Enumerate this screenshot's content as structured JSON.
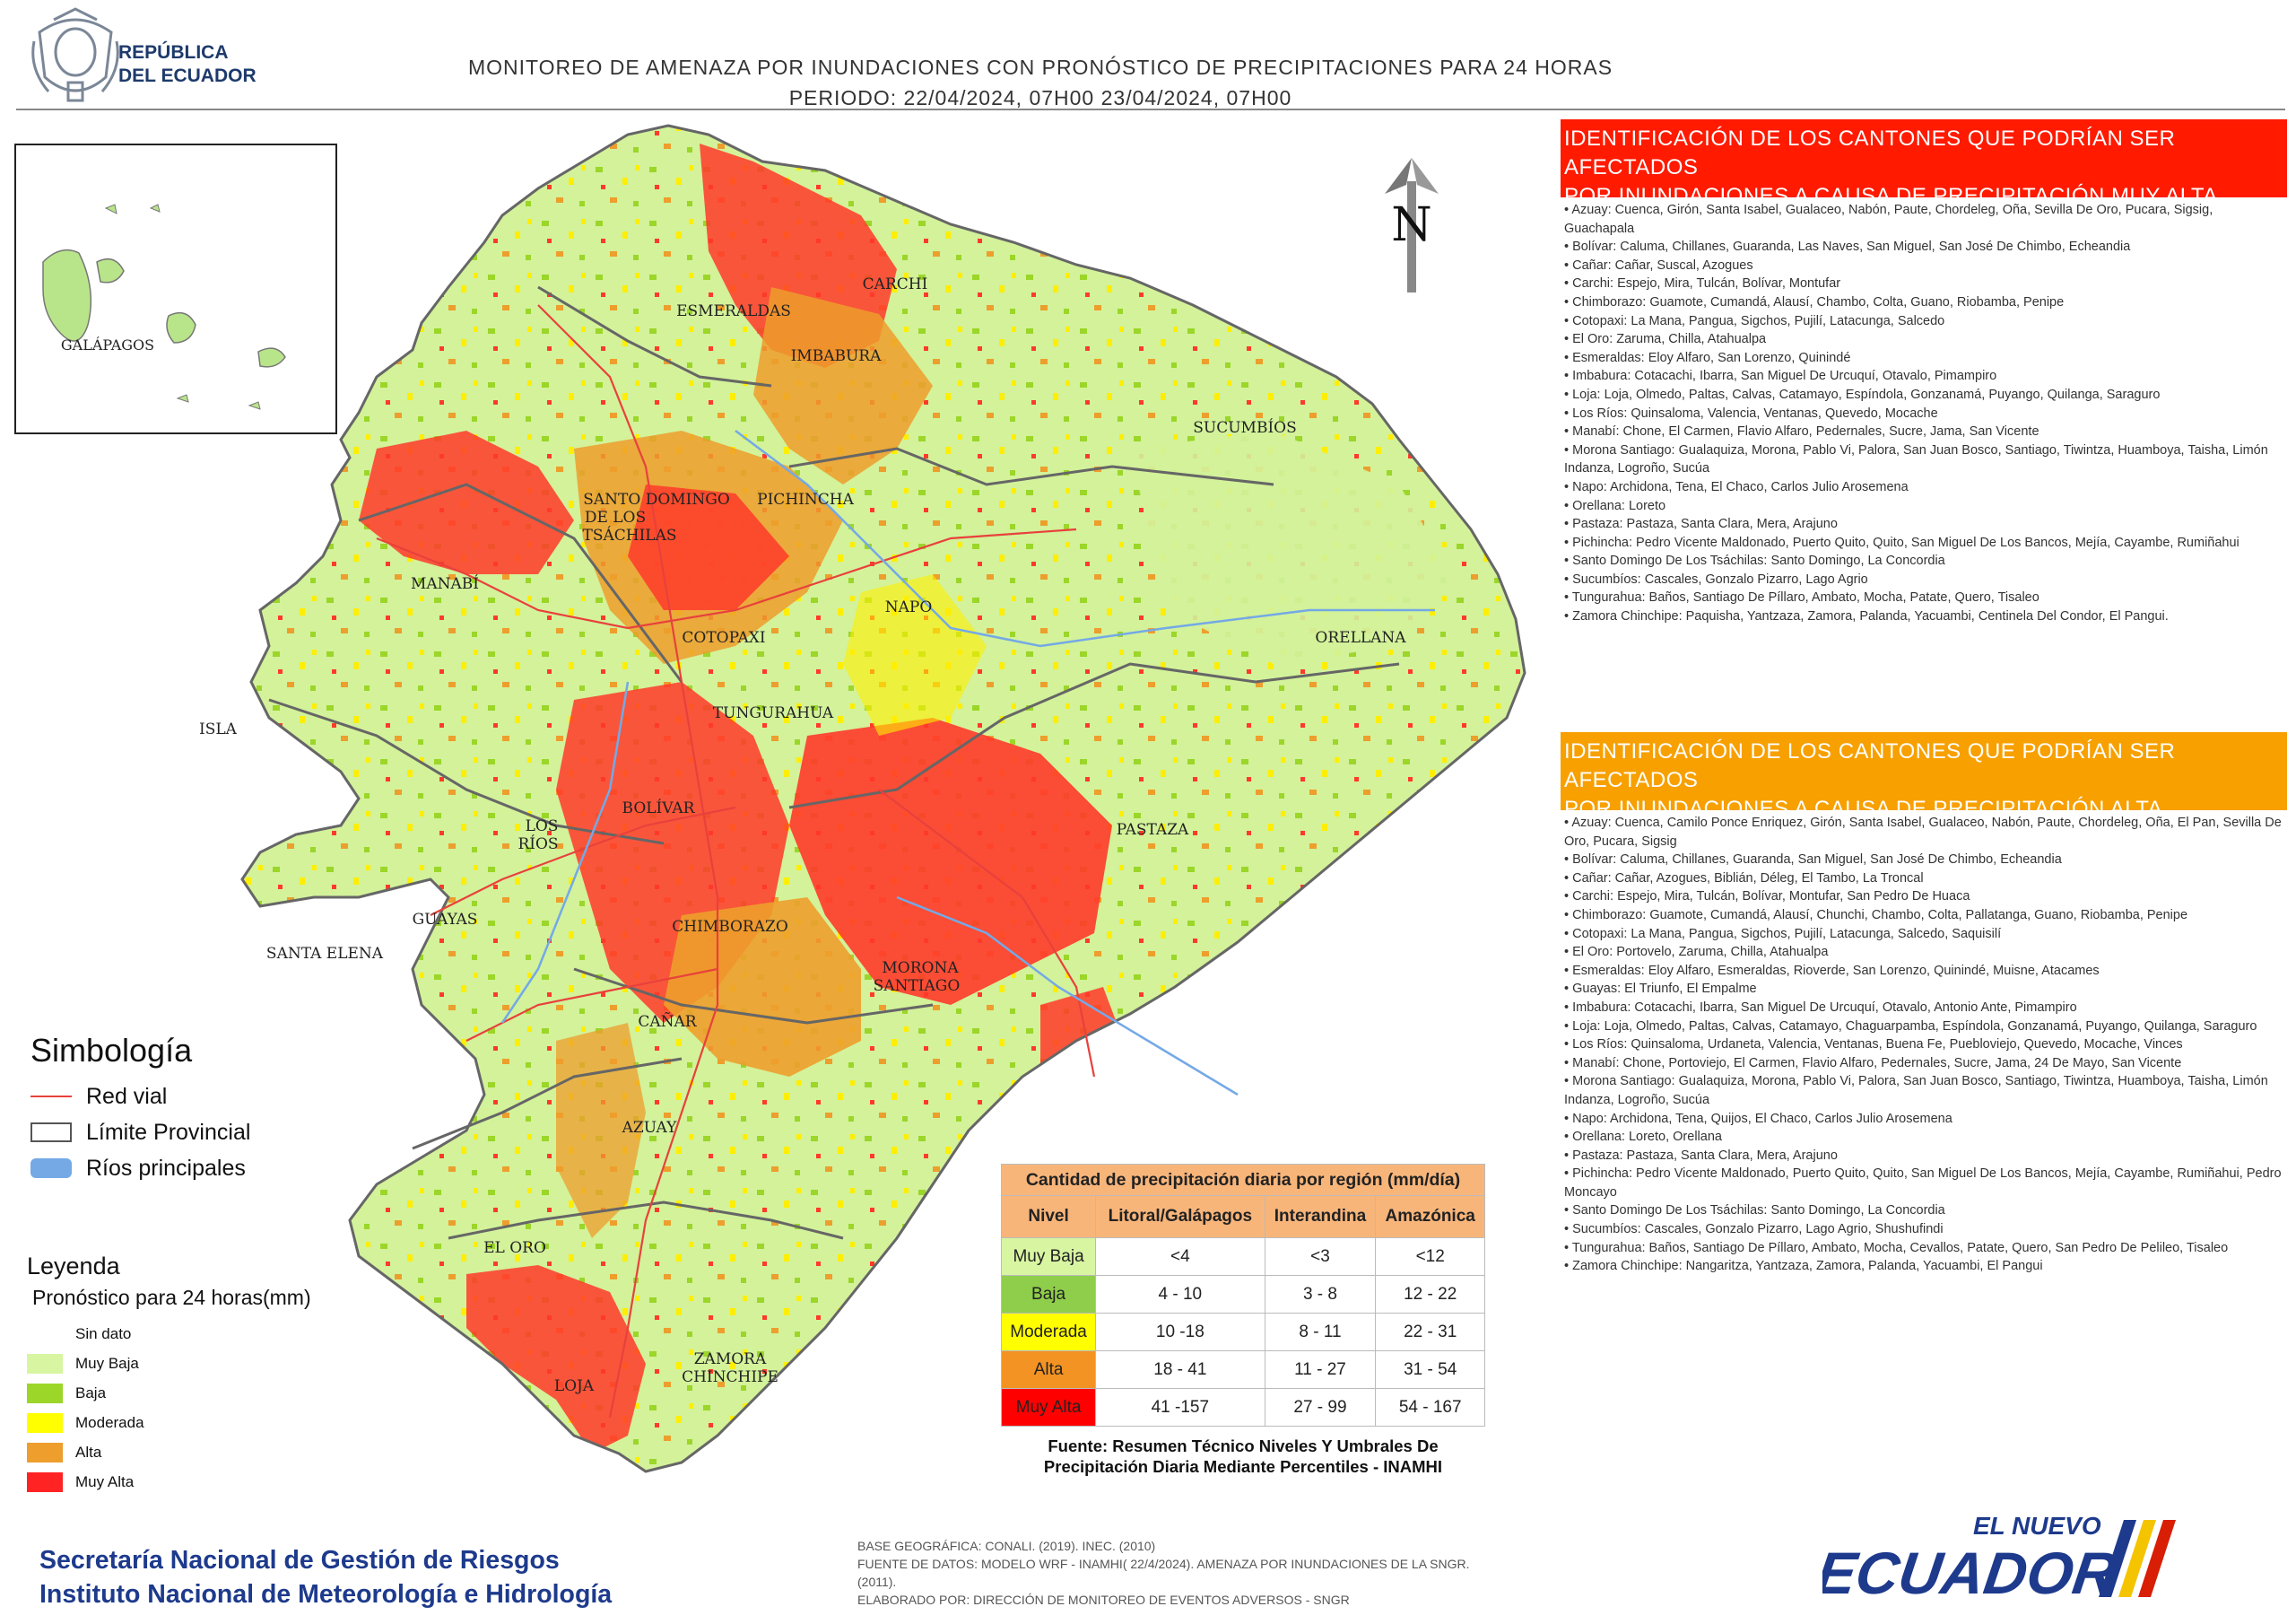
{
  "header": {
    "title_line1": "MONITOREO DE AMENAZA POR INUNDACIONES  CON PRONÓSTICO DE  PRECIPITACIONES PARA 24 HORAS",
    "title_line2": "PERIODO: 22/04/2024, 07H00 23/04/2024, 07H00",
    "republic_line1": "REPÚBLICA",
    "republic_line2": "DEL ECUADOR"
  },
  "map": {
    "north_label": "N",
    "inset_label": "GALÁPAGOS",
    "isla_label": "ISLA",
    "provinces": [
      "ESMERALDAS",
      "CARCHI",
      "IMBABURA",
      "SUCUMBÍOS",
      "SANTO DOMINGO",
      "DE LOS",
      "TSÁCHILAS",
      "PICHINCHA",
      "MANABÍ",
      "NAPO",
      "ORELLANA",
      "COTOPAXI",
      "TUNGURAHUA",
      "BOLÍVAR",
      "LOS",
      "RÍOS",
      "PASTAZA",
      "GUAYAS",
      "SANTA ELENA",
      "CHIMBORAZO",
      "MORONA",
      "SANTIAGO",
      "CAÑAR",
      "AZUAY",
      "EL ORO",
      "ZAMORA",
      "CHINCHIPE",
      "LOJA"
    ]
  },
  "panel_muy_alta": {
    "title_line1": "IDENTIFICACIÓN DE LOS CANTONES QUE PODRÍAN SER AFECTADOS",
    "title_line2": "POR INUNDACIONES  A CAUSA DE PRECIPITACIÓN MUY ALTA",
    "items": [
      "Azuay: Cuenca, Girón, Santa Isabel, Gualaceo, Nabón, Paute, Chordeleg, Oña, Sevilla De Oro, Pucara, Sigsig, Guachapala",
      "Bolívar: Caluma, Chillanes, Guaranda, Las Naves, San Miguel, San José De Chimbo, Echeandia",
      "Cañar: Cañar, Suscal, Azogues",
      "Carchi: Espejo, Mira, Tulcán, Bolívar, Montufar",
      "Chimborazo: Guamote, Cumandá, Alausí, Chambo, Colta, Guano, Riobamba, Penipe",
      "Cotopaxi: La Mana, Pangua, Sigchos, Pujilí, Latacunga, Salcedo",
      "El Oro: Zaruma, Chilla, Atahualpa",
      "Esmeraldas: Eloy Alfaro, San Lorenzo, Quinindé",
      "Imbabura: Cotacachi, Ibarra, San Miguel De Urcuquí, Otavalo, Pimampiro",
      "Loja: Loja, Olmedo, Paltas, Calvas, Catamayo, Espíndola, Gonzanamá, Puyango, Quilanga, Saraguro",
      "Los Ríos: Quinsaloma, Valencia, Ventanas, Quevedo, Mocache",
      "Manabí: Chone, El Carmen, Flavio Alfaro, Pedernales, Sucre, Jama, San Vicente",
      "Morona Santiago: Gualaquiza, Morona, Pablo Vi, Palora, San Juan Bosco, Santiago, Tiwintza, Huamboya, Taisha, Limón Indanza, Logroño, Sucúa",
      "Napo: Archidona, Tena, El Chaco, Carlos Julio Arosemena",
      "Orellana: Loreto",
      "Pastaza: Pastaza, Santa Clara, Mera, Arajuno",
      "Pichincha: Pedro Vicente Maldonado, Puerto Quito, Quito, San Miguel De Los Bancos, Mejía, Cayambe, Rumiñahui",
      "Santo Domingo De Los Tsáchilas: Santo Domingo, La Concordia",
      "Sucumbíos: Cascales, Gonzalo Pizarro, Lago Agrio",
      "Tungurahua: Baños, Santiago De Píllaro, Ambato, Mocha, Patate, Quero, Tisaleo",
      "Zamora Chinchipe: Paquisha, Yantzaza, Zamora, Palanda, Yacuambi, Centinela Del Condor, El Pangui."
    ]
  },
  "panel_alta": {
    "title_line1": "IDENTIFICACIÓN DE LOS CANTONES QUE  PODRÍAN SER AFECTADOS",
    "title_line2": "POR INUNDACIONES  A CAUSA DE PRECIPITACIÓN  ALTA",
    "items": [
      "Azuay: Cuenca, Camilo Ponce Enriquez, Girón, Santa Isabel, Gualaceo, Nabón, Paute, Chordeleg, Oña, El Pan, Sevilla De Oro, Pucara, Sigsig",
      "Bolívar: Caluma, Chillanes, Guaranda, San Miguel, San José De Chimbo, Echeandia",
      "Cañar: Cañar, Azogues, Biblián, Déleg, El Tambo, La Troncal",
      "Carchi: Espejo, Mira, Tulcán, Bolívar, Montufar, San Pedro De Huaca",
      "Chimborazo: Guamote, Cumandá, Alausí, Chunchi, Chambo, Colta, Pallatanga, Guano, Riobamba, Penipe",
      "Cotopaxi: La Mana, Pangua, Sigchos, Pujilí, Latacunga, Salcedo, Saquisilí",
      "El Oro: Portovelo, Zaruma, Chilla, Atahualpa",
      "Esmeraldas: Eloy Alfaro, Esmeraldas, Rioverde, San Lorenzo, Quinindé, Muisne, Atacames",
      "Guayas: El Triunfo, El Empalme",
      "Imbabura: Cotacachi, Ibarra, San Miguel De Urcuquí, Otavalo, Antonio Ante, Pimampiro",
      "Loja: Loja, Olmedo, Paltas, Calvas, Catamayo, Chaguarpamba, Espíndola, Gonzanamá, Puyango, Quilanga, Saraguro",
      "Los Ríos: Quinsaloma, Urdaneta, Valencia, Ventanas, Buena Fe, Puebloviejo, Quevedo, Mocache, Vinces",
      "Manabí: Chone, Portoviejo, El Carmen, Flavio Alfaro, Pedernales, Sucre, Jama, 24 De Mayo, San Vicente",
      "Morona Santiago: Gualaquiza, Morona, Pablo Vi, Palora, San Juan Bosco, Santiago, Tiwintza, Huamboya, Taisha, Limón Indanza, Logroño, Sucúa",
      "Napo: Archidona, Tena, Quijos, El Chaco, Carlos Julio Arosemena",
      "Orellana: Loreto, Orellana",
      "Pastaza: Pastaza, Santa Clara, Mera, Arajuno",
      "Pichincha: Pedro Vicente Maldonado, Puerto Quito, Quito, San Miguel De Los Bancos, Mejía, Cayambe, Rumiñahui, Pedro Moncayo",
      "Santo Domingo De Los Tsáchilas: Santo Domingo, La Concordia",
      "Sucumbíos: Cascales, Gonzalo Pizarro, Lago Agrio, Shushufindi",
      "Tungurahua: Baños, Santiago De Píllaro, Ambato, Mocha, Cevallos, Patate, Quero, San Pedro De Pelileo, Tisaleo",
      "Zamora Chinchipe: Nangaritza, Yantzaza, Zamora, Palanda, Yacuambi, El Pangui"
    ]
  },
  "simbologia": {
    "title": "Simbología",
    "items": [
      {
        "label": "Red vial",
        "color": "#e8413c"
      },
      {
        "label": "Límite Provincial",
        "color": "#555555"
      },
      {
        "label": "Ríos principales",
        "color": "#74a9e6"
      }
    ]
  },
  "leyenda": {
    "title": "Leyenda",
    "subtitle": "Pronóstico para 24 horas(mm)",
    "items": [
      {
        "label": "Sin dato",
        "color": "#ffffff"
      },
      {
        "label": "Muy Baja",
        "color": "#d8f5a2"
      },
      {
        "label": "Baja",
        "color": "#9bd629"
      },
      {
        "label": "Moderada",
        "color": "#ffff00"
      },
      {
        "label": "Alta",
        "color": "#ed9e2c"
      },
      {
        "label": "Muy Alta",
        "color": "#ff2323"
      }
    ]
  },
  "precip_table": {
    "caption": "Cantidad de precipitación diaria por región (mm/día)",
    "headers": [
      "Nivel",
      "Litoral/Galápagos",
      "Interandina",
      "Amazónica"
    ],
    "rows": [
      {
        "nivel": "Muy Baja",
        "color": "#d8f5a2",
        "litoral": "<4",
        "interandina": "<3",
        "amazonica": "<12"
      },
      {
        "nivel": "Baja",
        "color": "#8fce4a",
        "litoral": "4 - 10",
        "interandina": "3 - 8",
        "amazonica": "12 - 22"
      },
      {
        "nivel": "Moderada",
        "color": "#ffff00",
        "litoral": "10 -18",
        "interandina": "8 - 11",
        "amazonica": "22 - 31"
      },
      {
        "nivel": "Alta",
        "color": "#f39323",
        "litoral": "18 - 41",
        "interandina": "11 - 27",
        "amazonica": "31 - 54"
      },
      {
        "nivel": "Muy Alta",
        "color": "#ff0000",
        "litoral": "41 -157",
        "interandina": "27 - 99",
        "amazonica": "54 - 167"
      }
    ],
    "source_line1": "Fuente: Resumen Técnico Niveles Y Umbrales De",
    "source_line2": "Precipitación Diaria Mediante Percentiles - INAMHI"
  },
  "footer": {
    "inst_line1": "Secretaría Nacional de Gestión de Riesgos",
    "inst_line2": "Instituto Nacional de Meteorología e Hidrología",
    "src_line1": "BASE GEOGRÁFICA: CONALI. (2019). INEC. (2010)",
    "src_line2": "FUENTE DE DATOS: MODELO WRF - INAMHI( 22/4/2024).  AMENAZA POR INUNDACIONES DE LA SNGR. (2011).",
    "src_line3": "ELABORADO POR: DIRECCIÓN DE MONITOREO DE EVENTOS ADVERSOS - SNGR",
    "logo_top": "EL NUEVO",
    "logo_main": "ECUADOR"
  }
}
